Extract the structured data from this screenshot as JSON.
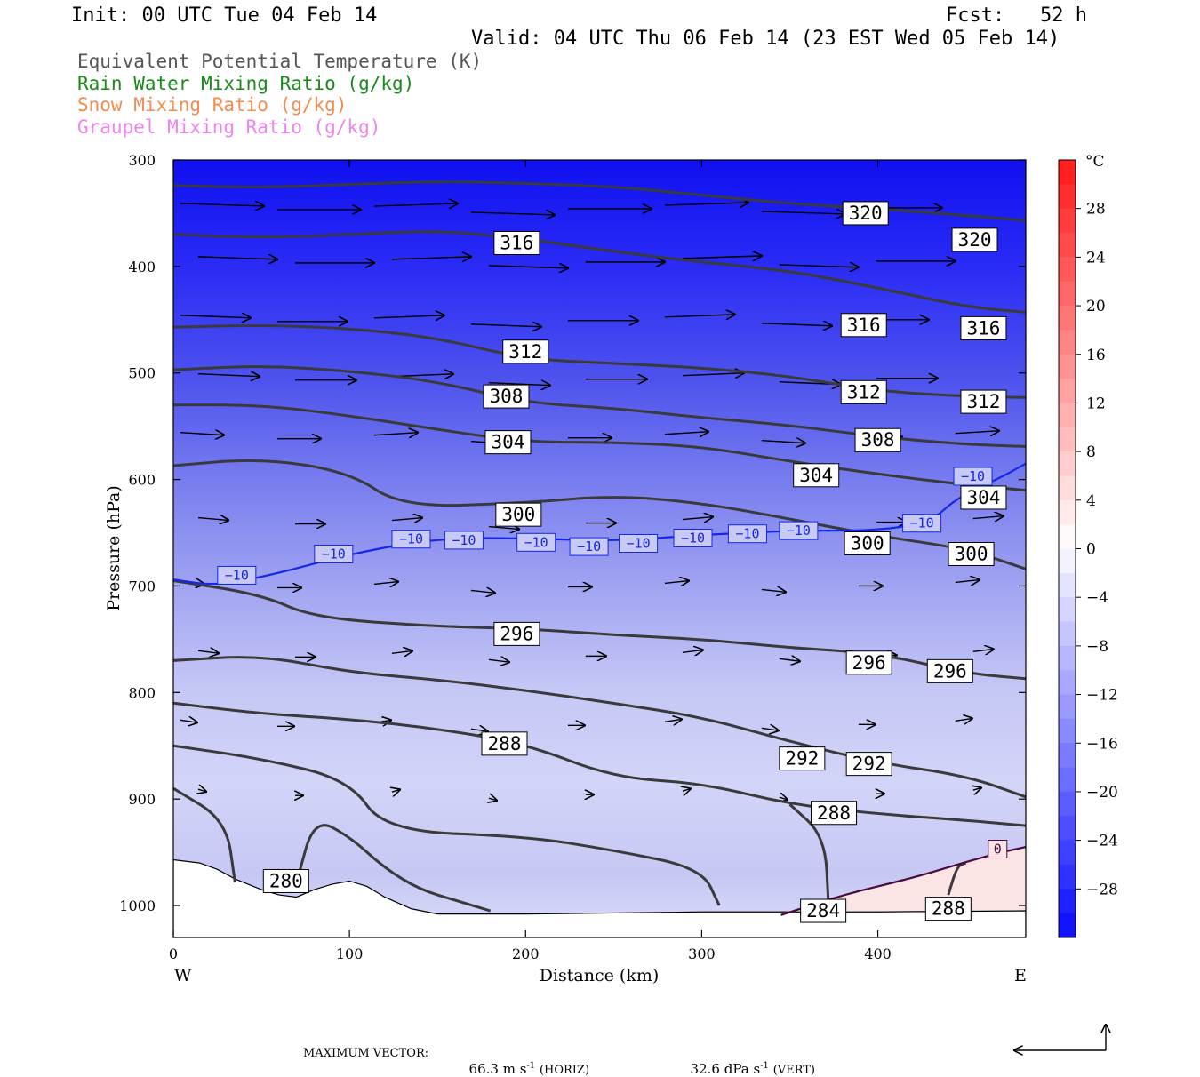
{
  "header": {
    "init": "Init: 00 UTC Tue 04 Feb 14",
    "fcst": "Fcst:   52 h",
    "valid": "Valid: 04 UTC Thu 06 Feb 14 (23 EST Wed 05 Feb 14)"
  },
  "legend": [
    {
      "text": "Equivalent Potential Temperature (K)",
      "color": "#555555"
    },
    {
      "text": "Rain Water Mixing Ratio (g/kg)",
      "color": "#1a8a1a"
    },
    {
      "text": "Snow Mixing Ratio (g/kg)",
      "color": "#f08c50"
    },
    {
      "text": "Graupel Mixing Ratio (g/kg)",
      "color": "#ee82ee"
    }
  ],
  "footer": {
    "max_vector_label": "MAXIMUM VECTOR:",
    "horiz_value": "66.3 m s",
    "horiz_unit": "(HORIZ)",
    "vert_value": "32.6 dPa s",
    "vert_unit": "(VERT)",
    "exponent": "-1"
  },
  "chart_data": {
    "type": "cross-section",
    "xlabel": "Distance (km)",
    "ylabel": "Pressure (hPa)",
    "x_ticks": [
      0,
      100,
      200,
      300,
      400
    ],
    "y_ticks": [
      300,
      400,
      500,
      600,
      700,
      800,
      900,
      1000
    ],
    "xlim": [
      0,
      484
    ],
    "ylim": [
      300,
      1030
    ],
    "x_end_labels": {
      "left": "W",
      "right": "E"
    },
    "colorbar": {
      "unit": "°C",
      "tick_labels": [
        "28",
        "24",
        "20",
        "16",
        "12",
        "8",
        "4",
        "0",
        "−4",
        "−8",
        "−12",
        "−16",
        "−20",
        "−24",
        "−28"
      ],
      "tick_values": [
        28,
        24,
        20,
        16,
        12,
        8,
        4,
        0,
        -4,
        -8,
        -12,
        -16,
        -20,
        -24,
        -28
      ],
      "range": [
        -32,
        32
      ]
    },
    "theta_e_contours": [
      {
        "label": "320",
        "points": [
          [
            0,
            324
          ],
          [
            50,
            326
          ],
          [
            100,
            323
          ],
          [
            150,
            320
          ],
          [
            200,
            322
          ],
          [
            250,
            325
          ],
          [
            300,
            333
          ],
          [
            350,
            341
          ],
          [
            400,
            346
          ],
          [
            450,
            352
          ],
          [
            484,
            357
          ]
        ]
      },
      {
        "label": "316",
        "points": [
          [
            0,
            370
          ],
          [
            50,
            373
          ],
          [
            100,
            370
          ],
          [
            150,
            366
          ],
          [
            200,
            374
          ],
          [
            250,
            386
          ],
          [
            300,
            396
          ],
          [
            350,
            404
          ],
          [
            400,
            420
          ],
          [
            450,
            438
          ],
          [
            484,
            443
          ]
        ]
      },
      {
        "label": "312",
        "points": [
          [
            0,
            457
          ],
          [
            50,
            455
          ],
          [
            100,
            458
          ],
          [
            150,
            467
          ],
          [
            200,
            487
          ],
          [
            250,
            491
          ],
          [
            300,
            495
          ],
          [
            350,
            503
          ],
          [
            400,
            517
          ],
          [
            450,
            522
          ],
          [
            484,
            523
          ]
        ]
      },
      {
        "label": "308",
        "points": [
          [
            0,
            497
          ],
          [
            50,
            493
          ],
          [
            100,
            498
          ],
          [
            150,
            508
          ],
          [
            200,
            528
          ],
          [
            250,
            533
          ],
          [
            300,
            542
          ],
          [
            350,
            549
          ],
          [
            400,
            560
          ],
          [
            450,
            567
          ],
          [
            484,
            569
          ]
        ]
      },
      {
        "label": "304",
        "points": [
          [
            0,
            530
          ],
          [
            50,
            530
          ],
          [
            100,
            540
          ],
          [
            150,
            553
          ],
          [
            200,
            565
          ],
          [
            250,
            565
          ],
          [
            300,
            569
          ],
          [
            350,
            583
          ],
          [
            400,
            595
          ],
          [
            450,
            605
          ],
          [
            484,
            610
          ]
        ]
      },
      {
        "label": "300",
        "points": [
          [
            0,
            587
          ],
          [
            50,
            580
          ],
          [
            100,
            593
          ],
          [
            130,
            626
          ],
          [
            200,
            622
          ],
          [
            250,
            615
          ],
          [
            300,
            622
          ],
          [
            350,
            637
          ],
          [
            400,
            653
          ],
          [
            450,
            665
          ],
          [
            484,
            684
          ]
        ]
      },
      {
        "label": "296",
        "points": [
          [
            0,
            695
          ],
          [
            50,
            708
          ],
          [
            80,
            730
          ],
          [
            150,
            738
          ],
          [
            200,
            740
          ],
          [
            250,
            746
          ],
          [
            300,
            750
          ],
          [
            350,
            758
          ],
          [
            400,
            763
          ],
          [
            450,
            782
          ],
          [
            484,
            787
          ]
        ]
      },
      {
        "label": "292",
        "points": [
          [
            0,
            770
          ],
          [
            50,
            765
          ],
          [
            100,
            781
          ],
          [
            150,
            788
          ],
          [
            200,
            798
          ],
          [
            250,
            810
          ],
          [
            300,
            823
          ],
          [
            350,
            846
          ],
          [
            400,
            866
          ],
          [
            450,
            878
          ],
          [
            484,
            898
          ]
        ]
      },
      {
        "label": "288",
        "points": [
          [
            0,
            810
          ],
          [
            50,
            820
          ],
          [
            100,
            825
          ],
          [
            150,
            834
          ],
          [
            200,
            848
          ],
          [
            250,
            880
          ],
          [
            300,
            885
          ],
          [
            350,
            905
          ],
          [
            400,
            914
          ],
          [
            450,
            920
          ],
          [
            484,
            925
          ]
        ]
      },
      {
        "label": "284",
        "points": [
          [
            0,
            850
          ],
          [
            50,
            862
          ],
          [
            100,
            882
          ],
          [
            120,
            930
          ],
          [
            200,
            935
          ],
          [
            250,
            948
          ],
          [
            300,
            965
          ],
          [
            310,
            1000
          ]
        ]
      },
      {
        "label": "280",
        "points": [
          [
            0,
            890
          ],
          [
            30,
            920
          ],
          [
            35,
            978
          ]
        ]
      },
      {
        "label": "280",
        "points": [
          [
            70,
            978
          ],
          [
            80,
            918
          ],
          [
            100,
            935
          ],
          [
            120,
            965
          ],
          [
            140,
            985
          ],
          [
            160,
            995
          ],
          [
            180,
            1005
          ]
        ]
      },
      {
        "label": "284",
        "points": [
          [
            350,
            905
          ],
          [
            370,
            935
          ],
          [
            372,
            1000
          ]
        ]
      },
      {
        "label": "288",
        "points": [
          [
            440,
            990
          ],
          [
            445,
            963
          ],
          [
            450,
            960
          ]
        ]
      }
    ],
    "isotherm_minus10": {
      "label": "−10",
      "points": [
        [
          0,
          694
        ],
        [
          25,
          700
        ],
        [
          60,
          688
        ],
        [
          100,
          670
        ],
        [
          150,
          655
        ],
        [
          200,
          655
        ],
        [
          250,
          658
        ],
        [
          300,
          652
        ],
        [
          350,
          648
        ],
        [
          400,
          648
        ],
        [
          430,
          640
        ],
        [
          445,
          617
        ],
        [
          470,
          598
        ],
        [
          484,
          585
        ]
      ]
    },
    "isotherm_zero": {
      "label": "0",
      "points": [
        [
          345,
          1009
        ],
        [
          380,
          990
        ],
        [
          420,
          974
        ],
        [
          450,
          959
        ],
        [
          470,
          950
        ],
        [
          484,
          945
        ]
      ]
    },
    "contour_label_positions": [
      {
        "text": "320",
        "x": 393,
        "p": 350
      },
      {
        "text": "320",
        "x": 455,
        "p": 375
      },
      {
        "text": "316",
        "x": 195,
        "p": 378
      },
      {
        "text": "316",
        "x": 392,
        "p": 455
      },
      {
        "text": "316",
        "x": 460,
        "p": 458
      },
      {
        "text": "312",
        "x": 200,
        "p": 480
      },
      {
        "text": "312",
        "x": 392,
        "p": 518
      },
      {
        "text": "312",
        "x": 460,
        "p": 527
      },
      {
        "text": "308",
        "x": 189,
        "p": 522
      },
      {
        "text": "308",
        "x": 400,
        "p": 563
      },
      {
        "text": "304",
        "x": 190,
        "p": 565
      },
      {
        "text": "304",
        "x": 365,
        "p": 596
      },
      {
        "text": "304",
        "x": 460,
        "p": 617
      },
      {
        "text": "300",
        "x": 196,
        "p": 633
      },
      {
        "text": "300",
        "x": 394,
        "p": 660
      },
      {
        "text": "300",
        "x": 453,
        "p": 670
      },
      {
        "text": "296",
        "x": 195,
        "p": 745
      },
      {
        "text": "296",
        "x": 395,
        "p": 772
      },
      {
        "text": "296",
        "x": 441,
        "p": 780
      },
      {
        "text": "292",
        "x": 357,
        "p": 862
      },
      {
        "text": "292",
        "x": 395,
        "p": 867
      },
      {
        "text": "288",
        "x": 188,
        "p": 848
      },
      {
        "text": "288",
        "x": 375,
        "p": 913
      },
      {
        "text": "288",
        "x": 440,
        "p": 1003
      },
      {
        "text": "284",
        "x": 369,
        "p": 1005
      },
      {
        "text": "280",
        "x": 64,
        "p": 977
      }
    ],
    "isotherm_label_positions": [
      {
        "text": "−10",
        "x": 36,
        "p": 690
      },
      {
        "text": "−10",
        "x": 91,
        "p": 670
      },
      {
        "text": "−10",
        "x": 135,
        "p": 656
      },
      {
        "text": "−10",
        "x": 165,
        "p": 657
      },
      {
        "text": "−10",
        "x": 206,
        "p": 659
      },
      {
        "text": "−10",
        "x": 236,
        "p": 663
      },
      {
        "text": "−10",
        "x": 264,
        "p": 660
      },
      {
        "text": "−10",
        "x": 295,
        "p": 655
      },
      {
        "text": "−10",
        "x": 326,
        "p": 651
      },
      {
        "text": "−10",
        "x": 355,
        "p": 648
      },
      {
        "text": "−10",
        "x": 425,
        "p": 641
      },
      {
        "text": "−10",
        "x": 454,
        "p": 597
      },
      {
        "text": "0",
        "x": 468,
        "p": 947
      }
    ]
  }
}
